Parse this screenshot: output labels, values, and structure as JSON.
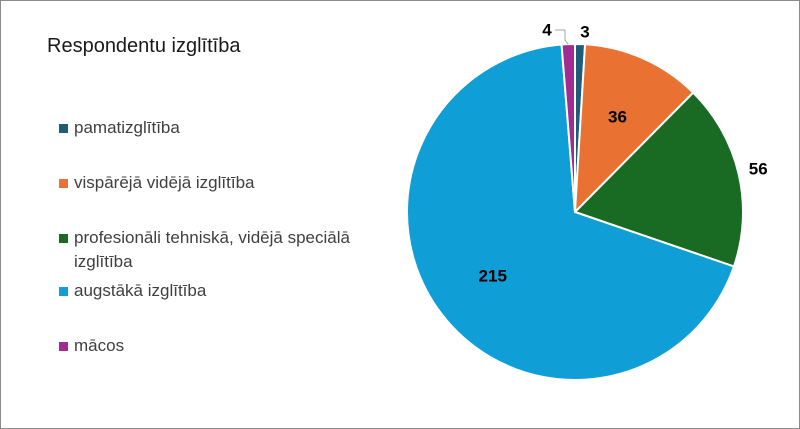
{
  "chart_data": {
    "type": "pie",
    "title": "Respondentu izglītība",
    "legend_position": "left",
    "series": [
      {
        "name": "pamatizglītība",
        "value": 3,
        "color": "#1f5c7a"
      },
      {
        "name": "vispārējā vidējā izglītība",
        "value": 36,
        "color": "#e97132"
      },
      {
        "name": "profesionāli tehniskā, vidējā speciālā izglītība",
        "value": 56,
        "color": "#196b24"
      },
      {
        "name": "augstākā izglītība",
        "value": 215,
        "color": "#0f9ed5"
      },
      {
        "name": "mācos",
        "value": 4,
        "color": "#a02b93"
      }
    ]
  }
}
